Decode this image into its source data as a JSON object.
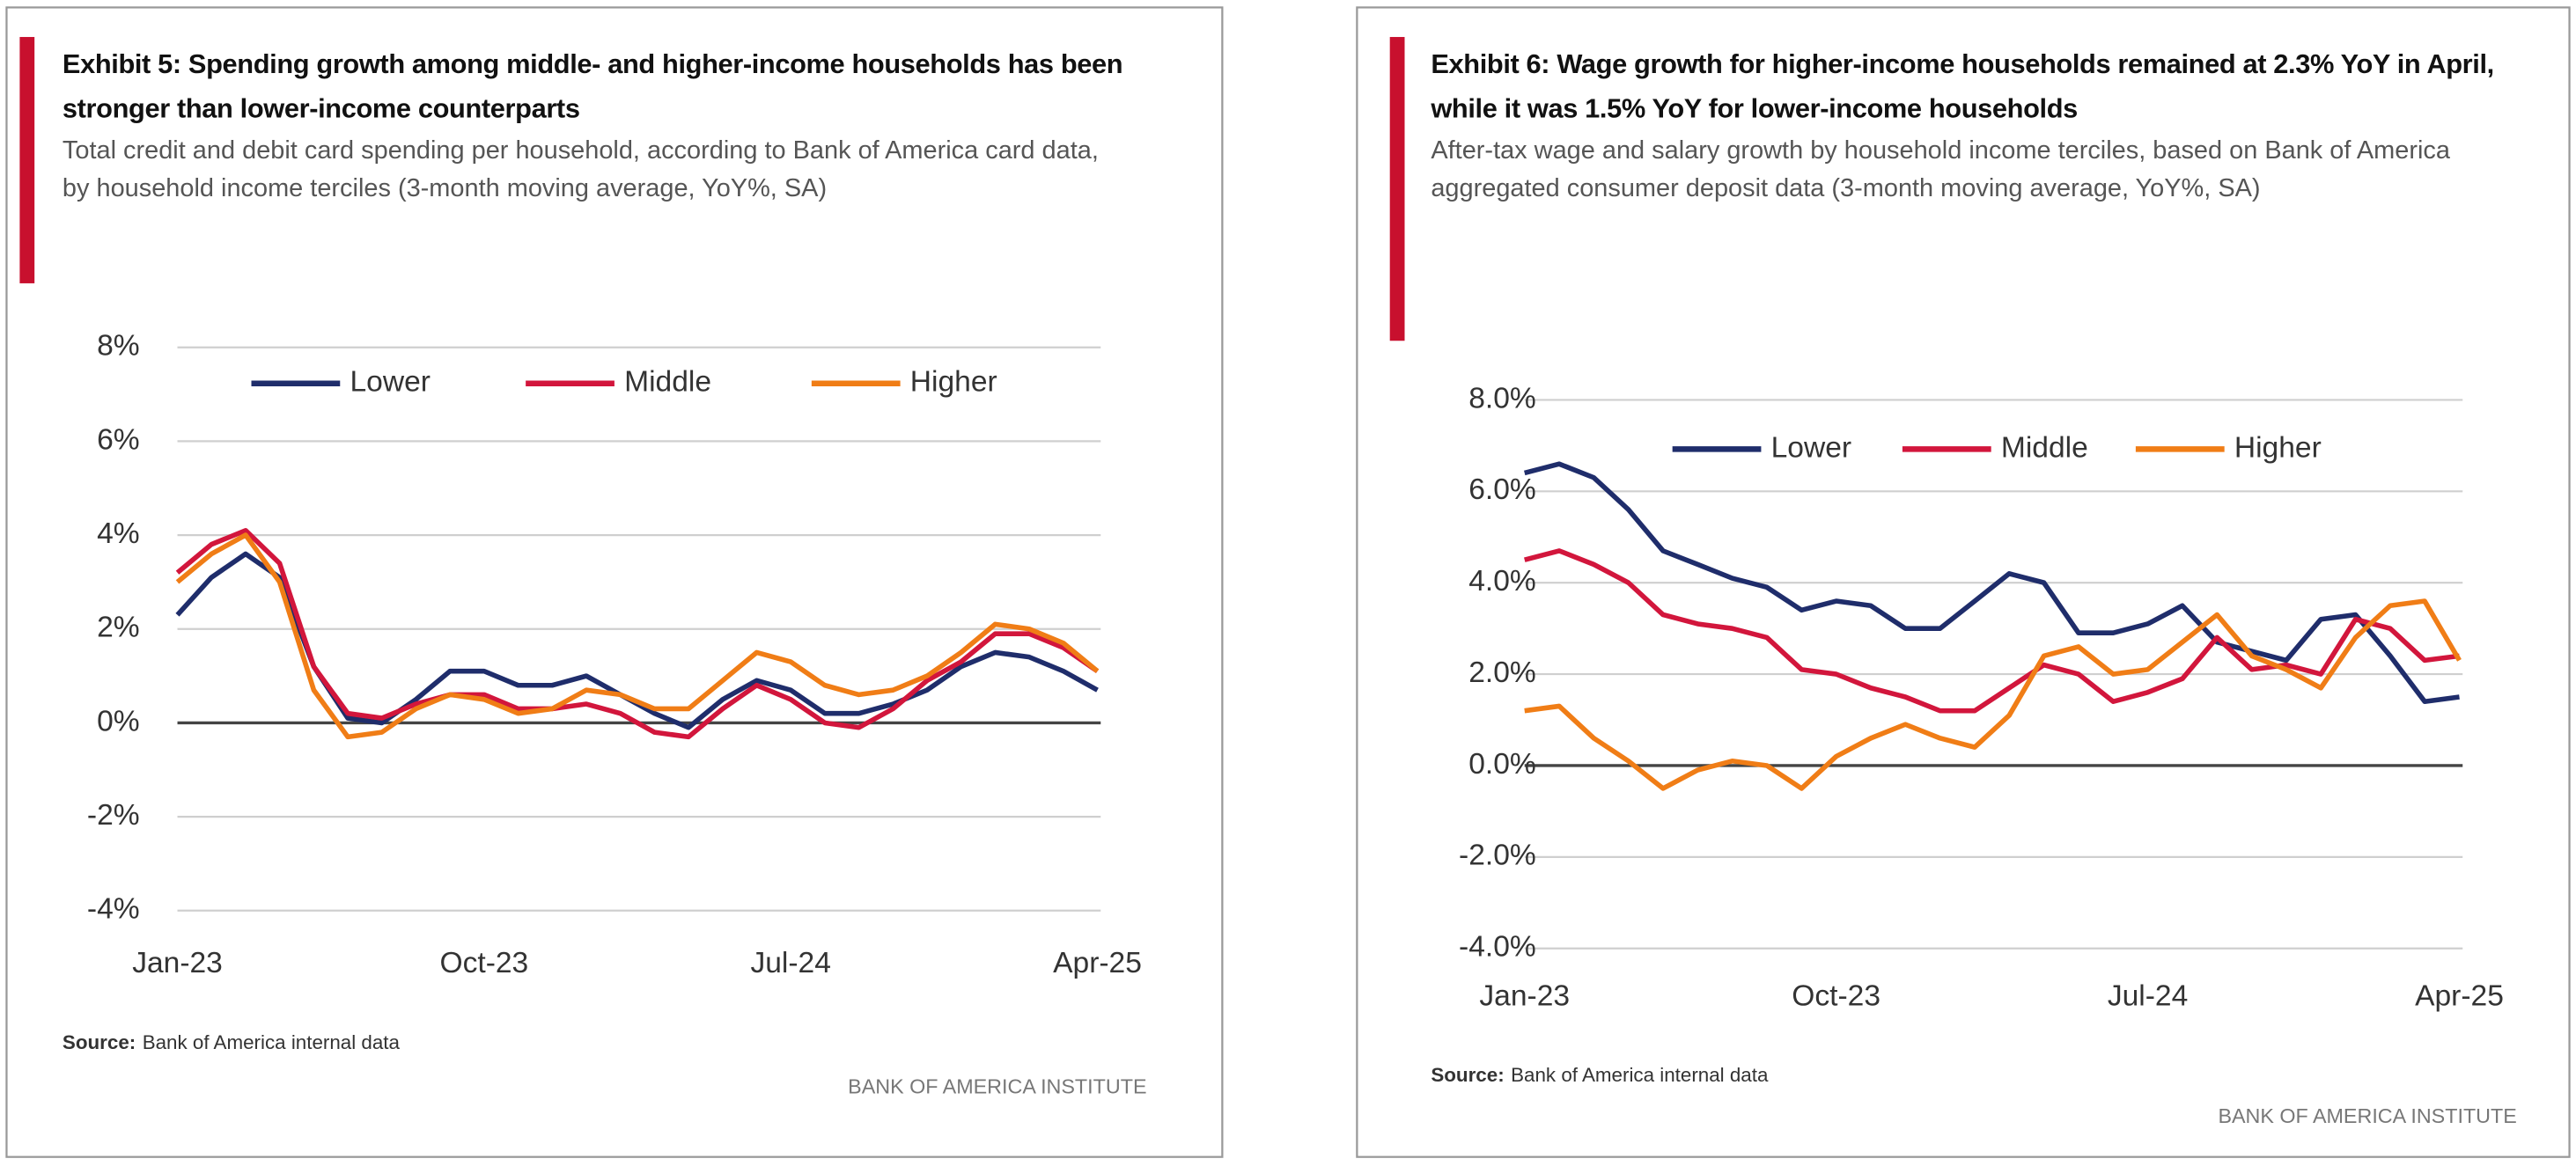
{
  "chart_data": [
    {
      "type": "line",
      "title": "Exhibit 5: Spending growth among middle- and higher-income households has been stronger than lower-income counterparts",
      "subtitle": "Total credit and debit card spending per household, according to Bank of America card data, by household income terciles (3-month moving average, YoY%, SA)",
      "categories": [
        "Jan-23",
        null,
        null,
        null,
        null,
        null,
        null,
        null,
        null,
        "Oct-23",
        null,
        null,
        null,
        null,
        null,
        null,
        null,
        null,
        "Jul-24",
        null,
        null,
        null,
        null,
        null,
        null,
        null,
        null,
        "Apr-25"
      ],
      "series": [
        {
          "name": "Lower",
          "color": "#1f2d6b",
          "values": [
            2.3,
            3.1,
            3.6,
            3.1,
            1.2,
            0.1,
            0.0,
            0.5,
            1.1,
            1.1,
            0.8,
            0.8,
            1.0,
            0.6,
            0.2,
            -0.1,
            0.5,
            0.9,
            0.7,
            0.2,
            0.2,
            0.4,
            0.7,
            1.2,
            1.5,
            1.4,
            1.1,
            0.7
          ]
        },
        {
          "name": "Middle",
          "color": "#d2163c",
          "values": [
            3.2,
            3.8,
            4.1,
            3.4,
            1.2,
            0.2,
            0.1,
            0.4,
            0.6,
            0.6,
            0.3,
            0.3,
            0.4,
            0.2,
            -0.2,
            -0.3,
            0.3,
            0.8,
            0.5,
            0.0,
            -0.1,
            0.3,
            0.9,
            1.3,
            1.9,
            1.9,
            1.6,
            1.1
          ]
        },
        {
          "name": "Higher",
          "color": "#f07d16",
          "values": [
            3.0,
            3.6,
            4.0,
            3.0,
            0.7,
            -0.3,
            -0.2,
            0.3,
            0.6,
            0.5,
            0.2,
            0.3,
            0.7,
            0.6,
            0.3,
            0.3,
            0.9,
            1.5,
            1.3,
            0.8,
            0.6,
            0.7,
            1.0,
            1.5,
            2.1,
            2.0,
            1.7,
            1.1
          ]
        }
      ],
      "ylim": [
        -4,
        8
      ],
      "yticks": [
        {
          "value": -4,
          "label": "-4%"
        },
        {
          "value": -2,
          "label": "-2%"
        },
        {
          "value": 0,
          "label": "0%"
        },
        {
          "value": 2,
          "label": "2%"
        },
        {
          "value": 4,
          "label": "4%"
        },
        {
          "value": 6,
          "label": "6%"
        },
        {
          "value": 8,
          "label": "8%"
        }
      ],
      "grid": true,
      "legend": "top",
      "source_label": "Source:",
      "source": "Bank of America internal data",
      "branding": "BANK OF AMERICA INSTITUTE"
    },
    {
      "type": "line",
      "title": "Exhibit 6: Wage growth for higher-income households remained at 2.3% YoY in April, while it was 1.5% YoY for lower-income households",
      "subtitle": "After-tax wage and salary growth by household income terciles, based on Bank of America aggregated consumer deposit data (3-month moving average, YoY%, SA)",
      "categories": [
        "Jan-23",
        null,
        null,
        null,
        null,
        null,
        null,
        null,
        null,
        "Oct-23",
        null,
        null,
        null,
        null,
        null,
        null,
        null,
        null,
        "Jul-24",
        null,
        null,
        null,
        null,
        null,
        null,
        null,
        null,
        "Apr-25"
      ],
      "series": [
        {
          "name": "Lower",
          "color": "#1f2d6b",
          "values": [
            6.4,
            6.6,
            6.3,
            5.6,
            4.7,
            4.4,
            4.1,
            3.9,
            3.4,
            3.6,
            3.5,
            3.0,
            3.0,
            3.6,
            4.2,
            4.0,
            2.9,
            2.9,
            3.1,
            3.5,
            2.7,
            2.5,
            2.3,
            3.2,
            3.3,
            2.4,
            1.4,
            1.5
          ]
        },
        {
          "name": "Middle",
          "color": "#d2163c",
          "values": [
            4.5,
            4.7,
            4.4,
            4.0,
            3.3,
            3.1,
            3.0,
            2.8,
            2.1,
            2.0,
            1.7,
            1.5,
            1.2,
            1.2,
            1.7,
            2.2,
            2.0,
            1.4,
            1.6,
            1.9,
            2.8,
            2.1,
            2.2,
            2.0,
            3.2,
            3.0,
            2.3,
            2.4
          ]
        },
        {
          "name": "Higher",
          "color": "#f07d16",
          "values": [
            1.2,
            1.3,
            0.6,
            0.1,
            -0.5,
            -0.1,
            0.1,
            0.0,
            -0.5,
            0.2,
            0.6,
            0.9,
            0.6,
            0.4,
            1.1,
            2.4,
            2.6,
            2.0,
            2.1,
            2.7,
            3.3,
            2.4,
            2.1,
            1.7,
            2.8,
            3.5,
            3.6,
            2.3
          ]
        }
      ],
      "ylim": [
        -4,
        8
      ],
      "yticks": [
        {
          "value": -4,
          "label": "-4.0%"
        },
        {
          "value": -2,
          "label": "-2.0%"
        },
        {
          "value": 0,
          "label": "0.0%"
        },
        {
          "value": 2,
          "label": "2.0%"
        },
        {
          "value": 4,
          "label": "4.0%"
        },
        {
          "value": 6,
          "label": "6.0%"
        },
        {
          "value": 8,
          "label": "8.0%"
        }
      ],
      "grid": true,
      "legend": "top",
      "source_label": "Source:",
      "source": "Bank of America internal data",
      "branding": "BANK OF AMERICA INSTITUTE"
    }
  ]
}
